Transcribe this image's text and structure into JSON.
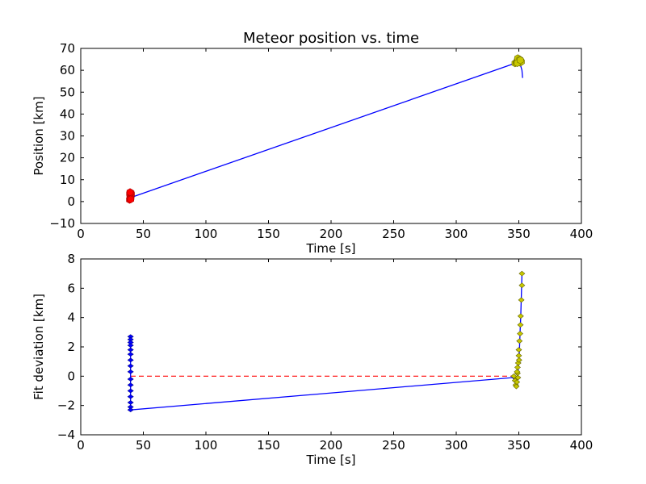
{
  "chart_data": [
    {
      "type": "scatter",
      "title": "Meteor position vs. time",
      "xlabel": "Time [s]",
      "ylabel": "Position [km]",
      "xlim": [
        0,
        400
      ],
      "ylim": [
        -10,
        70
      ],
      "xticks": [
        0,
        50,
        100,
        150,
        200,
        250,
        300,
        350,
        400
      ],
      "yticks": [
        -10,
        0,
        10,
        20,
        30,
        40,
        50,
        60,
        70
      ],
      "xtick_labels": [
        "0",
        "50",
        "100",
        "150",
        "200",
        "250",
        "300",
        "350",
        "400"
      ],
      "ytick_labels": [
        "−10",
        "0",
        "10",
        "20",
        "30",
        "40",
        "50",
        "60",
        "70"
      ],
      "grid": false,
      "colors": {
        "fit": "#0000ff",
        "station1": "#ff0000",
        "station2": "#c8c800"
      },
      "fit_line": {
        "x": [
          39.8,
          342,
          346,
          348,
          350,
          351.5,
          352.5,
          353
        ],
        "y": [
          1.8,
          62.2,
          63.0,
          63.3,
          63.2,
          62.0,
          60.0,
          56.5
        ]
      },
      "series": [
        {
          "x": [
            39,
            39.5,
            40,
            39.3,
            40.2,
            39.6,
            40.4,
            39.1,
            39.8,
            40.1,
            39.4,
            39.9
          ],
          "y": [
            0.8,
            1.2,
            1.6,
            2.2,
            2.5,
            3.0,
            3.4,
            3.6,
            3.8,
            4.0,
            4.3,
            1.0
          ]
        },
        {
          "x": [
            347,
            348,
            348.5,
            349,
            349.5,
            350,
            350.5,
            351,
            351.5,
            352,
            349.2,
            350.8,
            348.8,
            351.2
          ],
          "y": [
            63.2,
            63.5,
            64.0,
            64.8,
            65.2,
            64.5,
            63.8,
            63.5,
            64.2,
            63.9,
            65.5,
            64.9,
            63.3,
            64.6
          ]
        }
      ]
    },
    {
      "type": "scatter",
      "title": "",
      "xlabel": "Time [s]",
      "ylabel": "Fit deviation [km]",
      "xlim": [
        0,
        400
      ],
      "ylim": [
        -4,
        8
      ],
      "xticks": [
        0,
        50,
        100,
        150,
        200,
        250,
        300,
        350,
        400
      ],
      "yticks": [
        -4,
        -2,
        0,
        2,
        4,
        6,
        8
      ],
      "xtick_labels": [
        "0",
        "50",
        "100",
        "150",
        "200",
        "250",
        "300",
        "350",
        "400"
      ],
      "ytick_labels": [
        "−4",
        "−2",
        "0",
        "2",
        "4",
        "6",
        "8"
      ],
      "grid": false,
      "colors": {
        "residual": "#0000ff",
        "zero": "#ff0000",
        "markers2": "#c8c800",
        "markers1": "#0000ff"
      },
      "zero_line": {
        "x": [
          40,
          345
        ],
        "y": [
          0,
          0
        ]
      },
      "residual_line": {
        "x": [
          39.8,
          39.8,
          345,
          347,
          348,
          349,
          349.5,
          350,
          350.5,
          351,
          351.5,
          352,
          352.5
        ],
        "y": [
          2.7,
          -2.3,
          -0.1,
          -0.3,
          -0.5,
          -0.2,
          0.4,
          1.0,
          1.8,
          3.0,
          4.0,
          5.4,
          7.0
        ]
      },
      "series": [
        {
          "x": [
            39.8,
            39.8,
            39.8,
            39.8,
            39.8,
            39.8,
            39.8,
            39.8,
            39.8,
            39.8,
            39.8,
            39.8,
            39.8,
            39.8,
            39.8,
            39.8
          ],
          "y": [
            2.7,
            2.5,
            2.3,
            2.1,
            1.8,
            1.5,
            1.1,
            0.7,
            0.3,
            -0.2,
            -0.6,
            -1.0,
            -1.4,
            -1.8,
            -2.1,
            -2.3
          ]
        },
        {
          "x": [
            346,
            347,
            347.5,
            348,
            348.5,
            349,
            349,
            349.5,
            350,
            350,
            350.5,
            351,
            351.5,
            352,
            352.5,
            352.5,
            349.3,
            350.2,
            348.6,
            351.3
          ],
          "y": [
            0.0,
            -0.3,
            -0.6,
            -0.7,
            -0.4,
            0.2,
            0.6,
            0.9,
            1.4,
            1.8,
            2.4,
            2.9,
            4.1,
            5.2,
            6.2,
            7.0,
            -0.1,
            1.1,
            0.3,
            3.5
          ]
        }
      ]
    }
  ]
}
